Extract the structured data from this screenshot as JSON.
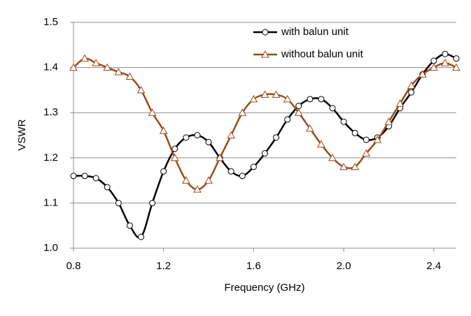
{
  "chart_data": {
    "type": "line",
    "x_label": "Frequency (GHz)",
    "y_label": "VSWR",
    "x": [
      0.8,
      0.85,
      0.9,
      0.95,
      1.0,
      1.05,
      1.1,
      1.15,
      1.2,
      1.25,
      1.3,
      1.35,
      1.4,
      1.45,
      1.5,
      1.55,
      1.6,
      1.65,
      1.7,
      1.75,
      1.8,
      1.85,
      1.9,
      1.95,
      2.0,
      2.05,
      2.1,
      2.15,
      2.2,
      2.25,
      2.3,
      2.35,
      2.4,
      2.45,
      2.5
    ],
    "series": [
      {
        "name": "with balun unit",
        "color": "#000000",
        "marker": "circle",
        "values": [
          1.16,
          1.16,
          1.155,
          1.135,
          1.1,
          1.05,
          1.025,
          1.1,
          1.17,
          1.22,
          1.245,
          1.25,
          1.235,
          1.2,
          1.17,
          1.16,
          1.18,
          1.21,
          1.245,
          1.285,
          1.315,
          1.33,
          1.33,
          1.31,
          1.28,
          1.255,
          1.24,
          1.245,
          1.27,
          1.31,
          1.345,
          1.385,
          1.415,
          1.43,
          1.42
        ]
      },
      {
        "name": "without balun unit",
        "color": "#9c4a1a",
        "marker": "triangle",
        "values": [
          1.4,
          1.42,
          1.41,
          1.4,
          1.39,
          1.38,
          1.35,
          1.3,
          1.26,
          1.2,
          1.15,
          1.13,
          1.15,
          1.2,
          1.25,
          1.3,
          1.33,
          1.34,
          1.34,
          1.33,
          1.3,
          1.265,
          1.23,
          1.2,
          1.18,
          1.18,
          1.21,
          1.24,
          1.28,
          1.32,
          1.36,
          1.385,
          1.4,
          1.41,
          1.4
        ]
      }
    ],
    "xlim": [
      0.8,
      2.5
    ],
    "xticks": [
      0.8,
      1.2,
      1.6,
      {
        "value": 2.0,
        "label": "2.0"
      },
      2.4
    ],
    "ylim": [
      1.0,
      1.5
    ],
    "yticks": [
      {
        "value": 1.0,
        "label": "1.0"
      },
      1.1,
      1.2,
      1.3,
      1.4,
      {
        "value": 1.5,
        "label": "1.5"
      }
    ],
    "grid": true,
    "legend": "upper-right"
  }
}
